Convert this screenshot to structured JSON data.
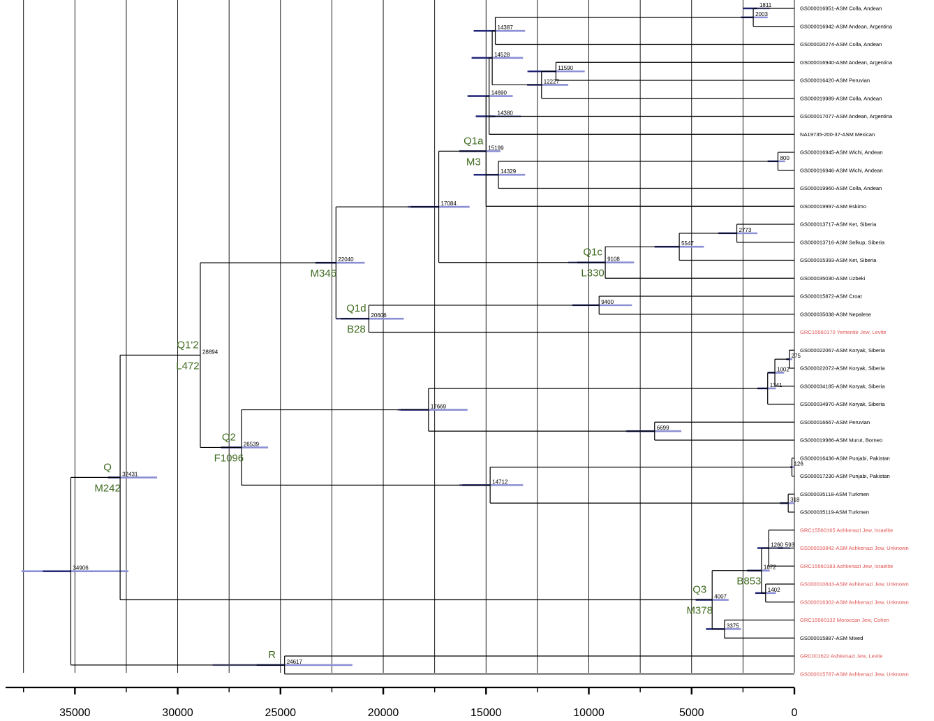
{
  "colors": {
    "branch": "#000000",
    "ci_bar": "#8c8fd4",
    "node_bar": "#1a1f6e",
    "haplogroup_label": "#3f6b1f",
    "leaf_highlight": "#e05555",
    "leaf_default": "#000000",
    "grid": "#000000"
  },
  "axis": {
    "min": 0,
    "max": 37500,
    "reversed": true,
    "ticks": [
      35000,
      30000,
      25000,
      20000,
      15000,
      10000,
      5000,
      0
    ],
    "tick_labels": [
      "35000",
      "30000",
      "25000",
      "20000",
      "15000",
      "10000",
      "5000",
      "0"
    ],
    "gridlines_every": 2500
  },
  "leaves": [
    {
      "label": "GS000016951-ASM Colla, Andean",
      "highlight": false
    },
    {
      "label": "GS000016942-ASM Andean, Argentina",
      "highlight": false
    },
    {
      "label": "GS000020274-ASM Colla, Andean",
      "highlight": false
    },
    {
      "label": "GS000016940-ASM Andean, Argentina",
      "highlight": false
    },
    {
      "label": "GS000016420-ASM Peruvian",
      "highlight": false
    },
    {
      "label": "GS000019989-ASM Colla, Andean",
      "highlight": false
    },
    {
      "label": "GS000017077-ASM Andean, Argentina",
      "highlight": false
    },
    {
      "label": "NA19735-200-37-ASM Mexican",
      "highlight": false
    },
    {
      "label": "GS000016945-ASM Wichi, Andean",
      "highlight": false
    },
    {
      "label": "GS000016946-ASM Wichi, Andean",
      "highlight": false
    },
    {
      "label": "GS000019960-ASM Colla, Andean",
      "highlight": false
    },
    {
      "label": "GS000019997-ASM Eskimo",
      "highlight": false
    },
    {
      "label": "GS000013717-ASM Ket, Siberia",
      "highlight": false
    },
    {
      "label": "GS000013716-ASM Selkup, Siberia",
      "highlight": false
    },
    {
      "label": "GS000015393-ASM Ket, Siberia",
      "highlight": false
    },
    {
      "label": "GS000035030-ASM Uzbeki",
      "highlight": false
    },
    {
      "label": "GS000015872-ASM Croat",
      "highlight": false
    },
    {
      "label": "GS000035038-ASM Nepalese",
      "highlight": false
    },
    {
      "label": "GRC15560170 Yemenite Jew, Levite",
      "highlight": true
    },
    {
      "label": "GS000022067-ASM Koryak, Siberia",
      "highlight": false
    },
    {
      "label": "GS000022072-ASM Koryak, Siberia",
      "highlight": false
    },
    {
      "label": "GS000034185-ASM Koryak, Siberia",
      "highlight": false
    },
    {
      "label": "GS000034970-ASM Koryak, Siberia",
      "highlight": false
    },
    {
      "label": "GS000016667-ASM Peruvian",
      "highlight": false
    },
    {
      "label": "GS000019986-ASM Murut, Borneo",
      "highlight": false
    },
    {
      "label": "GS000016436-ASM Punjabi, Pakistan",
      "highlight": false
    },
    {
      "label": "GS000017230-ASM Punjabi, Pakistan",
      "highlight": false
    },
    {
      "label": "GS000035118-ASM Turkmen",
      "highlight": false
    },
    {
      "label": "GS000035119-ASM Turkmen",
      "highlight": false
    },
    {
      "label": "GRC15560165 Ashkenazi Jew, Israelite",
      "highlight": true
    },
    {
      "label": "GS000010842-ASM Ashkenazi Jew, Unknown",
      "highlight": true
    },
    {
      "label": "GRC15560183 Ashkenazi Jew, Israelite",
      "highlight": true
    },
    {
      "label": "GS000010843-ASM Ashkenazi Jew, Unknown",
      "highlight": true
    },
    {
      "label": "GS000016302-ASM Ashkenazi Jew, Unknown",
      "highlight": true
    },
    {
      "label": "GRC15560132 Moroccan Jew, Cohen",
      "highlight": true
    },
    {
      "label": "GS000015887-ASM Mixed",
      "highlight": false
    },
    {
      "label": "GRC001622 Ashkenazi Jew, Levite",
      "highlight": true
    },
    {
      "label": "GS000015787-ASM Ashkenazi Jew, Unknown",
      "highlight": true
    }
  ],
  "nodes": [
    {
      "id": "root",
      "age": 35200,
      "ci": [
        37600,
        32400
      ],
      "label": "34906",
      "children": [
        "n32431",
        "nR"
      ]
    },
    {
      "id": "n32431",
      "age": 32800,
      "ci": [
        33400,
        31000
      ],
      "label": "32431",
      "children": [
        "n28894",
        "nQ3"
      ]
    },
    {
      "id": "n28894",
      "age": 28900,
      "ci": null,
      "label": "28894",
      "children": [
        "n22040",
        "nQ2"
      ]
    },
    {
      "id": "n22040",
      "age": 22300,
      "ci": [
        23300,
        20900
      ],
      "label": "22040",
      "children": [
        "n17084",
        "n20606"
      ]
    },
    {
      "id": "n17084",
      "age": 17300,
      "ci": [
        18800,
        15800
      ],
      "label": "17084",
      "children": [
        "n15199",
        "n9108"
      ]
    },
    {
      "id": "n15199",
      "age": 15000,
      "ci": [
        16300,
        14300
      ],
      "label": "15199",
      "children": [
        "n14690",
        "n14329",
        "L11"
      ]
    },
    {
      "id": "n14690",
      "age": 14850,
      "ci": [
        15900,
        13700
      ],
      "label": "14690",
      "children": [
        "n14528",
        "n14380",
        "L7"
      ]
    },
    {
      "id": "n14528",
      "age": 14700,
      "ci": [
        15700,
        13200
      ],
      "label": "14528",
      "children": [
        "n14387",
        "n12227"
      ]
    },
    {
      "id": "n14387",
      "age": 14550,
      "ci": [
        15600,
        13100
      ],
      "label": "14387",
      "children": [
        "n2003",
        "L2"
      ]
    },
    {
      "id": "n2003",
      "age": 2000,
      "ci": [
        2600,
        1300
      ],
      "label": "2003",
      "children": [
        "n1811",
        "L1"
      ]
    },
    {
      "id": "n1811",
      "age": 1800,
      "ci": [
        2500,
        1200
      ],
      "label": "1811",
      "children": [
        "L0"
      ]
    },
    {
      "id": "n12227",
      "age": 12300,
      "ci": [
        13000,
        11000
      ],
      "label": "12227",
      "children": [
        "n11590",
        "L5"
      ]
    },
    {
      "id": "n11590",
      "age": 11600,
      "ci": [
        13000,
        10200
      ],
      "label": "11590",
      "children": [
        "L3",
        "L4"
      ]
    },
    {
      "id": "n14380",
      "age": 14550,
      "ci": [
        15500,
        13300
      ],
      "label": "14380",
      "children": [
        "L6"
      ]
    },
    {
      "id": "n14329",
      "age": 14400,
      "ci": [
        15600,
        13100
      ],
      "label": "14329",
      "children": [
        "n800",
        "L10"
      ]
    },
    {
      "id": "n800",
      "age": 800,
      "ci": [
        1300,
        450
      ],
      "label": "800",
      "children": [
        "L8",
        "L9"
      ]
    },
    {
      "id": "n9108",
      "age": 9200,
      "ci": [
        11000,
        7800
      ],
      "label": "9108",
      "children": [
        "n5547",
        "L15"
      ]
    },
    {
      "id": "n5547",
      "age": 5600,
      "ci": [
        6800,
        4400
      ],
      "label": "5547",
      "children": [
        "n2773",
        "L14"
      ]
    },
    {
      "id": "n2773",
      "age": 2800,
      "ci": [
        3700,
        1800
      ],
      "label": "2773",
      "children": [
        "L12",
        "L13"
      ]
    },
    {
      "id": "n20606",
      "age": 20700,
      "ci": [
        22300,
        19000
      ],
      "label": "20606",
      "children": [
        "n9400",
        "L18"
      ]
    },
    {
      "id": "n9400",
      "age": 9500,
      "ci": [
        10800,
        7900
      ],
      "label": "9400",
      "children": [
        "L16",
        "L17"
      ]
    },
    {
      "id": "nQ2",
      "age": 26900,
      "ci": [
        27900,
        25600
      ],
      "label": "26539",
      "children": [
        "n17669",
        "n14712"
      ]
    },
    {
      "id": "n17669",
      "age": 17800,
      "ci": [
        19300,
        15900
      ],
      "label": "17669",
      "children": [
        "n1341",
        "n6699"
      ]
    },
    {
      "id": "n1341",
      "age": 1300,
      "ci": [
        1800,
        900
      ],
      "label": "1341",
      "children": [
        "n1002",
        "L22"
      ]
    },
    {
      "id": "n1002",
      "age": 950,
      "ci": [
        1300,
        500
      ],
      "label": "1002",
      "children": [
        "n275",
        "L21"
      ]
    },
    {
      "id": "n275",
      "age": 250,
      "ci": [
        400,
        100
      ],
      "label": "275",
      "children": [
        "L19",
        "L20"
      ]
    },
    {
      "id": "n6699",
      "age": 6800,
      "ci": [
        8200,
        5500
      ],
      "label": "6699",
      "children": [
        "L23",
        "L24"
      ]
    },
    {
      "id": "n14712",
      "age": 14800,
      "ci": [
        16300,
        13200
      ],
      "label": "14712",
      "children": [
        "n126",
        "n318"
      ]
    },
    {
      "id": "n126",
      "age": 120,
      "ci": [
        200,
        0
      ],
      "label": "126",
      "children": [
        "L25",
        "L26"
      ]
    },
    {
      "id": "n318",
      "age": 300,
      "ci": [
        700,
        0
      ],
      "label": "318",
      "children": [
        "L27",
        "L28"
      ]
    },
    {
      "id": "nQ3",
      "age": 4000,
      "ci": [
        4800,
        3200
      ],
      "label": "4007",
      "children": [
        "n1672",
        "n3375"
      ]
    },
    {
      "id": "n1672",
      "age": 1600,
      "ci": [
        2300,
        1200
      ],
      "label": "1672",
      "children": [
        "n1260",
        "n1402"
      ]
    },
    {
      "id": "n1260",
      "age": 1250,
      "ci": [
        1800,
        800
      ],
      "label": "1260",
      "children": [
        "L29",
        "n593",
        "L31"
      ]
    },
    {
      "id": "n593",
      "age": 550,
      "ci": [
        800,
        200
      ],
      "label": "593",
      "children": [
        "L30"
      ]
    },
    {
      "id": "n1402",
      "age": 1400,
      "ci": [
        1900,
        900
      ],
      "label": "1402",
      "children": [
        "L32",
        "L33"
      ]
    },
    {
      "id": "n3375",
      "age": 3400,
      "ci": [
        4300,
        2600
      ],
      "label": "3375",
      "children": [
        "L34",
        "L35"
      ]
    },
    {
      "id": "nR",
      "age": 24800,
      "ci": [
        28300,
        21500
      ],
      "label": "24617",
      "children": [
        "L36",
        "L37"
      ]
    }
  ],
  "haplogroups": [
    {
      "name": "Q",
      "marker": "M242",
      "node": "n32431"
    },
    {
      "name": "Q1'2",
      "marker": "L472",
      "node": "n28894"
    },
    {
      "name": "",
      "marker": "M346",
      "node": "n22040"
    },
    {
      "name": "Q1a",
      "marker": "M3",
      "node": "n15199"
    },
    {
      "name": "Q1c",
      "marker": "L330",
      "node": "n9108"
    },
    {
      "name": "Q1d",
      "marker": "B28",
      "node": "n20606"
    },
    {
      "name": "Q2",
      "marker": "F1096",
      "node": "nQ2"
    },
    {
      "name": "Q3",
      "marker": "M378",
      "node": "nQ3"
    },
    {
      "name": "",
      "marker": "B853",
      "node": "n1672"
    },
    {
      "name": "R",
      "marker": "",
      "node": "nR"
    }
  ]
}
